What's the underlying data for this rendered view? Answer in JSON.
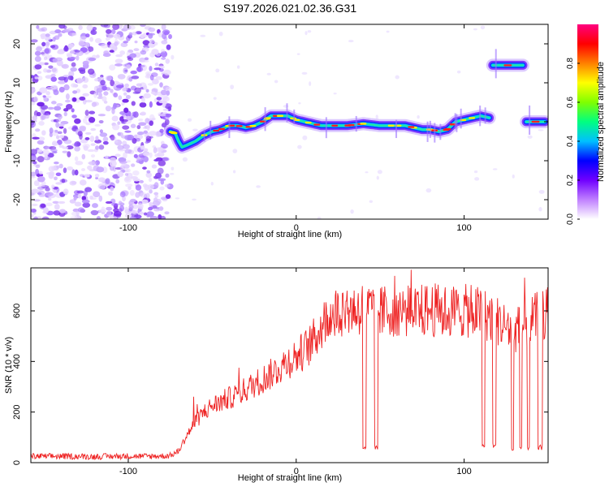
{
  "title": "S197.2026.021.02.36.G31",
  "chart_data": [
    {
      "type": "heatmap",
      "name": "spectrogram",
      "title": "S197.2026.021.02.36.G31",
      "xlabel": "Height of straight line (km)",
      "ylabel": "Frequency (Hz)",
      "xlim": [
        -158,
        150
      ],
      "ylim": [
        -25,
        25
      ],
      "xticks": [
        -100,
        0,
        100
      ],
      "xtick_labels": [
        "-100",
        "0",
        "100"
      ],
      "yticks": [
        -20,
        -10,
        0,
        10,
        20
      ],
      "ytick_labels": [
        "-20",
        "-10",
        "0",
        "10",
        "20"
      ],
      "noise_region_x": [
        -158,
        -75
      ],
      "ridge": {
        "x": [
          -75,
          -72,
          -70,
          -68,
          -65,
          -60,
          -55,
          -50,
          -45,
          -40,
          -35,
          -30,
          -25,
          -20,
          -15,
          -10,
          -5,
          0,
          5,
          10,
          15,
          20,
          30,
          40,
          50,
          60,
          65,
          70,
          75,
          80,
          85,
          90,
          95,
          100,
          105,
          110,
          115
        ],
        "y": [
          -2.5,
          -3,
          -5,
          -6.5,
          -6,
          -5,
          -3.5,
          -2.5,
          -2,
          -1,
          -1,
          -1.5,
          -1,
          0,
          1.5,
          1.5,
          1.5,
          0.5,
          0,
          -0.5,
          -1,
          -1,
          -1,
          -0.5,
          -1,
          -1,
          -1,
          -1.5,
          -2,
          -2,
          -2.5,
          -2,
          0,
          0.5,
          1,
          1.5,
          1
        ]
      },
      "segments": [
        {
          "x": [
            117,
            135
          ],
          "y": 14.5
        },
        {
          "x": [
            137,
            148
          ],
          "y": 0
        }
      ],
      "colorbar": {
        "label": "Normalized spectral amplitude",
        "range": [
          0,
          1
        ],
        "ticks": [
          0.0,
          0.2,
          0.4,
          0.6,
          0.8
        ],
        "tick_labels": [
          "0.0",
          "0.2",
          "0.4",
          "0.6",
          "0.8"
        ],
        "colors": [
          "#ffffff",
          "#c080ff",
          "#7000ff",
          "#0000ff",
          "#00c0ff",
          "#00ff80",
          "#80ff00",
          "#ffff00",
          "#ff8000",
          "#ff0000",
          "#ff0080"
        ]
      }
    },
    {
      "type": "line",
      "name": "snr",
      "xlabel": "Height of straight line (km)",
      "ylabel": "SNR (10 * v/v)",
      "xlim": [
        -158,
        150
      ],
      "ylim": [
        0,
        770
      ],
      "xticks": [
        -100,
        0,
        100
      ],
      "xtick_labels": [
        "-100",
        "0",
        "100"
      ],
      "yticks": [
        0,
        200,
        400,
        600
      ],
      "ytick_labels": [
        "0",
        "200",
        "400",
        "600"
      ],
      "color": "#ee2222",
      "series": [
        {
          "name": "SNR",
          "x": [
            -158,
            -140,
            -120,
            -100,
            -90,
            -80,
            -75,
            -70,
            -65,
            -60,
            -55,
            -50,
            -45,
            -40,
            -35,
            -30,
            -25,
            -20,
            -15,
            -10,
            -5,
            0,
            5,
            10,
            15,
            20,
            25,
            30,
            35,
            40,
            45,
            50,
            55,
            60,
            65,
            70,
            75,
            80,
            85,
            90,
            95,
            100,
            105,
            110,
            115,
            120,
            125,
            130,
            135,
            140,
            145,
            150
          ],
          "y": [
            25,
            25,
            24,
            26,
            25,
            26,
            28,
            45,
            110,
            160,
            200,
            225,
            240,
            255,
            270,
            290,
            310,
            330,
            350,
            375,
            400,
            420,
            445,
            480,
            540,
            580,
            600,
            610,
            605,
            610,
            600,
            595,
            600,
            605,
            600,
            598,
            600,
            605,
            600,
            595,
            600,
            598,
            600,
            590,
            580,
            560,
            540,
            520,
            540,
            560,
            580,
            590
          ]
        }
      ],
      "dropouts": [
        {
          "x": [
            39.5,
            41.5
          ],
          "y": 60
        },
        {
          "x": [
            46.5,
            48.5
          ],
          "y": 60
        },
        {
          "x": [
            110.5,
            112.5
          ],
          "y": 65
        },
        {
          "x": [
            117,
            119
          ],
          "y": 70
        },
        {
          "x": [
            128,
            129.5
          ],
          "y": 50
        },
        {
          "x": [
            133,
            134.5
          ],
          "y": 60
        },
        {
          "x": [
            137.5,
            139
          ],
          "y": 60
        },
        {
          "x": [
            144,
            146.5
          ],
          "y": 60
        }
      ]
    }
  ]
}
